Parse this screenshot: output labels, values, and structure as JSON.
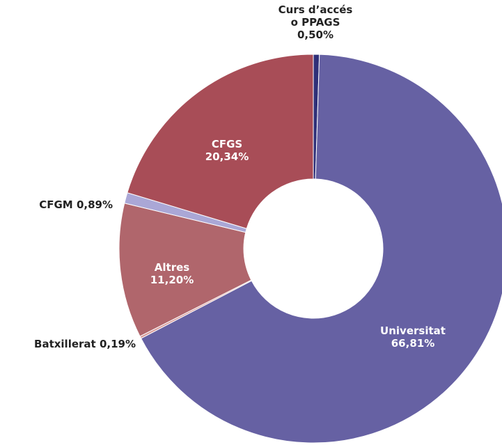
{
  "chart_data": {
    "type": "donut",
    "categories": [
      "Curs d’accés o PPAGS",
      "Universitat",
      "Batxillerat",
      "Altres",
      "CFGM",
      "CFGS"
    ],
    "values": [
      0.5,
      66.81,
      0.19,
      11.2,
      0.89,
      20.34
    ],
    "value_labels": [
      "0,50%",
      "66,81%",
      "0,19%",
      "11,20%",
      "0,89%",
      "20,34%"
    ],
    "colors": [
      "#2f3078",
      "#6661a3",
      "#d89a98",
      "#b0666c",
      "#aaa7d6",
      "#a84d57"
    ]
  }
}
